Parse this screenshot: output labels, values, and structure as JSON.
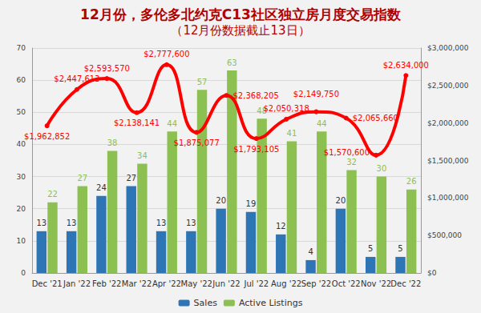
{
  "chart_data": {
    "type": "bar",
    "title": "12月份，多伦多北约克C13社区独立房月度交易指数",
    "subtitle": "（12月份数据截止13日）",
    "categories": [
      "Dec '21",
      "Jan '22",
      "Feb '22",
      "Mar '22",
      "Apr '22",
      "May '22",
      "Jun '22",
      "Jul '22",
      "Aug '22",
      "Sep '22",
      "Oct '22",
      "Nov '22",
      "Dec '22"
    ],
    "series": [
      {
        "name": "Sales",
        "type": "bar",
        "color": "#2e75b6",
        "values": [
          13,
          13,
          24,
          27,
          13,
          13,
          20,
          19,
          12,
          4,
          20,
          5,
          5
        ]
      },
      {
        "name": "Active Listings",
        "type": "bar",
        "color": "#8cc152",
        "values": [
          22,
          27,
          38,
          34,
          44,
          57,
          63,
          48,
          41,
          44,
          32,
          30,
          26
        ]
      },
      {
        "type": "line",
        "axis": "y2",
        "color": "#ff0000",
        "marker": "circle",
        "line_style": "solid",
        "values": [
          1962852,
          2447613,
          2593570,
          2138141,
          2777600,
          1875077,
          2368205,
          1793105,
          2050318,
          2149750,
          2065660,
          1570600,
          2634000
        ],
        "value_labels": [
          "$1,962,852",
          "$2,447,613",
          "$2,593,570",
          "$2,138,141",
          "$2,777,600",
          "$1,875,077",
          "$2,368,205",
          "$1,793,105",
          "$2,050,318",
          "$2,149,750",
          "$2,065,660",
          "$1,570,600",
          "$2,634,000"
        ]
      }
    ],
    "ylim": [
      0,
      70
    ],
    "yticks": [
      0,
      10,
      20,
      30,
      40,
      50,
      60,
      70
    ],
    "y2lim": [
      0,
      3000000
    ],
    "y2ticks": [
      {
        "value": 0,
        "label": "$0"
      },
      {
        "value": 500000,
        "label": "$500,000"
      },
      {
        "value": 1000000,
        "label": "$1,000,000"
      },
      {
        "value": 1500000,
        "label": "$1,500,000"
      },
      {
        "value": 2000000,
        "label": "$2,000,000"
      },
      {
        "value": 2500000,
        "label": "$2,500,000"
      },
      {
        "value": 3000000,
        "label": "$3,000,000"
      }
    ],
    "data_labels": true,
    "legend": "bottom",
    "grid": true
  }
}
